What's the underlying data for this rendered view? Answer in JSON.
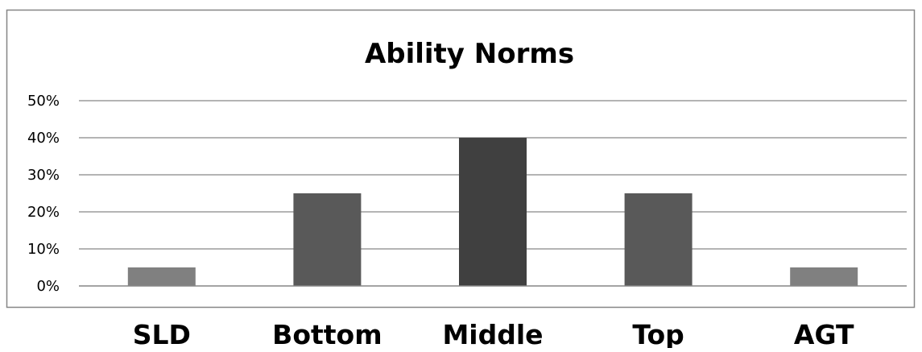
{
  "chart_data": {
    "type": "bar",
    "title": "Ability Norms",
    "categories": [
      "SLD",
      "Bottom",
      "Middle",
      "Top",
      "AGT"
    ],
    "values": [
      5,
      25,
      40,
      25,
      5
    ],
    "bar_colors": [
      "#808080",
      "#595959",
      "#404040",
      "#595959",
      "#808080"
    ],
    "ylim": [
      0,
      50
    ],
    "yticks": [
      0,
      10,
      20,
      30,
      40,
      50
    ],
    "ytick_labels": [
      "0%",
      "10%",
      "20%",
      "30%",
      "40%",
      "50%"
    ],
    "grid": true,
    "legend": "none"
  }
}
